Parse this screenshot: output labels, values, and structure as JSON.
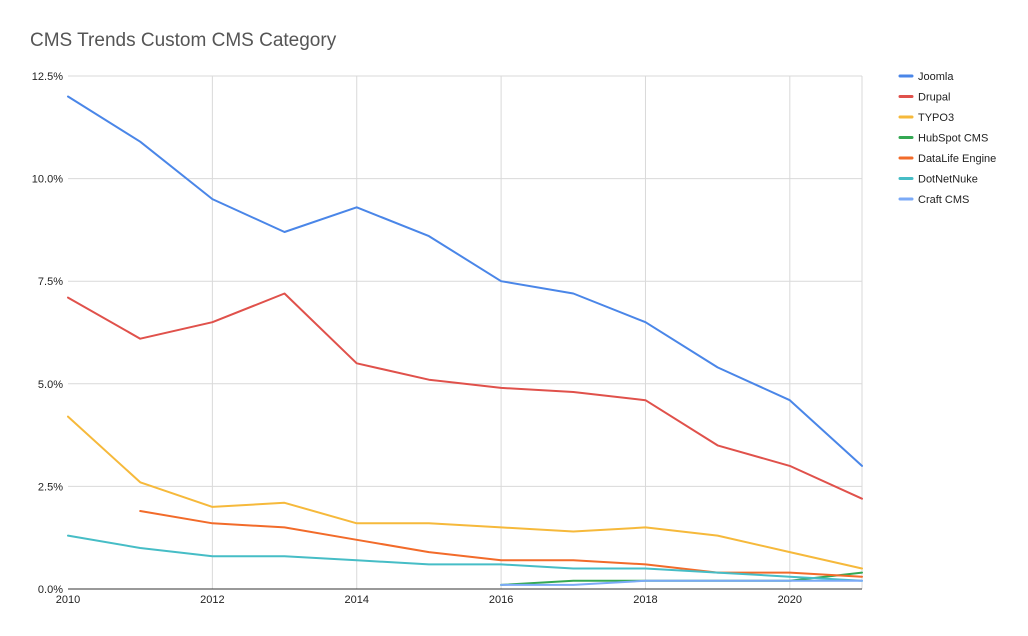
{
  "chart_data": {
    "type": "line",
    "title": "CMS Trends Custom CMS Category",
    "xlabel": "",
    "ylabel": "",
    "xlim": [
      2010,
      2021
    ],
    "ylim": [
      0,
      12.5
    ],
    "x_ticks": [
      2010,
      2012,
      2014,
      2016,
      2018,
      2020
    ],
    "x_tick_labels": [
      "2010",
      "2012",
      "2014",
      "2016",
      "2018",
      "2020"
    ],
    "y_ticks": [
      0,
      2.5,
      5,
      7.5,
      10,
      12.5
    ],
    "y_tick_labels": [
      "0.0%",
      "2.5%",
      "5.0%",
      "7.5%",
      "10.0%",
      "12.5%"
    ],
    "grid": true,
    "legend_position": "right",
    "series": [
      {
        "name": "Joomla",
        "color": "#4a86e8",
        "x": [
          2010,
          2011,
          2012,
          2013,
          2014,
          2015,
          2016,
          2017,
          2018,
          2019,
          2020,
          2021
        ],
        "values": [
          12.0,
          10.9,
          9.5,
          8.7,
          9.3,
          8.6,
          7.5,
          7.2,
          6.5,
          5.4,
          4.6,
          3.0
        ]
      },
      {
        "name": "Drupal",
        "color": "#e0514b",
        "x": [
          2010,
          2011,
          2012,
          2013,
          2014,
          2015,
          2016,
          2017,
          2018,
          2019,
          2020,
          2021
        ],
        "values": [
          7.1,
          6.1,
          6.5,
          7.2,
          5.5,
          5.1,
          4.9,
          4.8,
          4.6,
          3.5,
          3.0,
          2.2
        ]
      },
      {
        "name": "TYPO3",
        "color": "#f6b93b",
        "x": [
          2010,
          2011,
          2012,
          2013,
          2014,
          2015,
          2016,
          2017,
          2018,
          2019,
          2020,
          2021
        ],
        "values": [
          4.2,
          2.6,
          2.0,
          2.1,
          1.6,
          1.6,
          1.5,
          1.4,
          1.5,
          1.3,
          0.9,
          0.5
        ]
      },
      {
        "name": "HubSpot CMS",
        "color": "#34a853",
        "x": [
          2016,
          2017,
          2018,
          2019,
          2020,
          2021
        ],
        "values": [
          0.1,
          0.2,
          0.2,
          0.2,
          0.2,
          0.4
        ]
      },
      {
        "name": "DataLife Engine",
        "color": "#f26b2a",
        "x": [
          2011,
          2012,
          2013,
          2014,
          2015,
          2016,
          2017,
          2018,
          2019,
          2020,
          2021
        ],
        "values": [
          1.9,
          1.6,
          1.5,
          1.2,
          0.9,
          0.7,
          0.7,
          0.6,
          0.4,
          0.4,
          0.3
        ]
      },
      {
        "name": "DotNetNuke",
        "color": "#46bdc6",
        "x": [
          2010,
          2011,
          2012,
          2013,
          2014,
          2015,
          2016,
          2017,
          2018,
          2019,
          2020,
          2021
        ],
        "values": [
          1.3,
          1.0,
          0.8,
          0.8,
          0.7,
          0.6,
          0.6,
          0.5,
          0.5,
          0.4,
          0.3,
          0.2
        ]
      },
      {
        "name": "Craft CMS",
        "color": "#7baaf7",
        "x": [
          2016,
          2017,
          2018,
          2019,
          2020,
          2021
        ],
        "values": [
          0.1,
          0.1,
          0.2,
          0.2,
          0.2,
          0.2
        ]
      }
    ]
  }
}
